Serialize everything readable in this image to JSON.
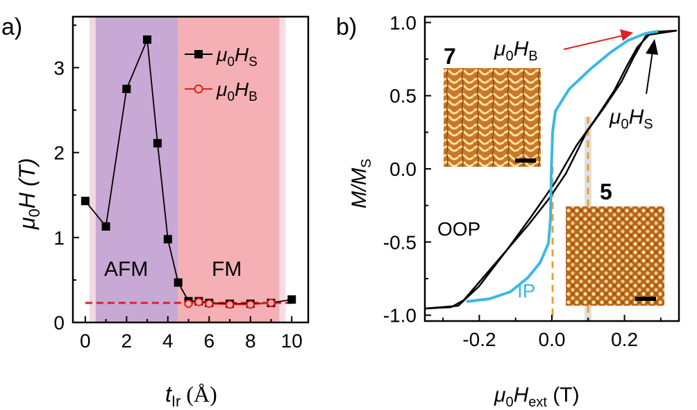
{
  "chart_data": [
    {
      "type": "scatter",
      "panel_label": "a)",
      "xlabel_main": "t",
      "xlabel_sub": "Ir",
      "xlabel_unit": " (Å)",
      "ylabel_main": "μ",
      "ylabel_sub": "0",
      "ylabel_rest": "H (T)",
      "xlim": [
        -0.6,
        10.8
      ],
      "ylim": [
        0,
        3.6
      ],
      "xticks": [
        0,
        2,
        4,
        6,
        8,
        10
      ],
      "yticks": [
        0,
        1,
        2,
        3
      ],
      "regions": [
        {
          "label": "AFM",
          "x0": 0.5,
          "x1": 4.5,
          "color": "#c8a8d4"
        },
        {
          "label": "FM",
          "x0": 4.5,
          "x1": 9.4,
          "color": "#f4b0b4"
        }
      ],
      "legend": [
        {
          "name": "μ0HS",
          "main": "μ",
          "sub0": "0",
          "mid": "H",
          "sub": "S",
          "marker": "square-filled",
          "color": "#000000"
        },
        {
          "name": "μ0HB",
          "main": "μ",
          "sub0": "0",
          "mid": "H",
          "sub": "B",
          "marker": "circle-open",
          "color": "#e02020"
        }
      ],
      "series": [
        {
          "name": "μ0HS",
          "color": "#000000",
          "x": [
            0,
            1,
            2,
            3,
            3.5,
            4,
            4.5,
            5,
            5.5,
            6,
            7,
            8,
            9,
            10
          ],
          "y": [
            1.43,
            1.13,
            2.75,
            3.33,
            2.11,
            0.98,
            0.47,
            0.25,
            0.25,
            0.23,
            0.22,
            0.22,
            0.23,
            0.27
          ]
        },
        {
          "name": "μ0HB",
          "color": "#e02020",
          "x": [
            5,
            5.5,
            6,
            7,
            8,
            9
          ],
          "y": [
            0.22,
            0.24,
            0.22,
            0.21,
            0.21,
            0.23
          ]
        }
      ],
      "reference_line": {
        "y": 0.23,
        "color": "#e02020",
        "style": "dashed"
      }
    },
    {
      "type": "line",
      "panel_label": "b)",
      "xlabel_main": "μ",
      "xlabel_sub0": "0",
      "xlabel_mid": "H",
      "xlabel_sub": "ext",
      "xlabel_unit": " (T)",
      "ylabel_main": "M/M",
      "ylabel_sub": "S",
      "xlim": [
        -0.35,
        0.35
      ],
      "ylim": [
        -1.04,
        1.04
      ],
      "xticks": [
        -0.2,
        0.0,
        0.2
      ],
      "xtick_labels": [
        "-0.2",
        "0.0",
        "0.2"
      ],
      "yticks": [
        -1.0,
        -0.5,
        0.0,
        0.5,
        1.0
      ],
      "ytick_labels": [
        "-1.0",
        "-0.5",
        "0.0",
        "0.5",
        "1.0"
      ],
      "series": [
        {
          "name": "OOP",
          "color": "#000000"
        },
        {
          "name": "IP",
          "color": "#3bb8e6"
        }
      ],
      "annotations": {
        "oop_label": "OOP",
        "ip_label": "IP",
        "hb": {
          "main": "μ",
          "sub0": "0",
          "mid": "H",
          "sub": "B"
        },
        "hs": {
          "main": "μ",
          "sub0": "0",
          "mid": "H",
          "sub": "S"
        },
        "inset_top_label": "7",
        "inset_bottom_label": "5"
      },
      "guide_lines": [
        {
          "x": 0.0,
          "color": "#f0a030"
        },
        {
          "x": 0.1,
          "color": "#f0a030"
        }
      ]
    }
  ]
}
